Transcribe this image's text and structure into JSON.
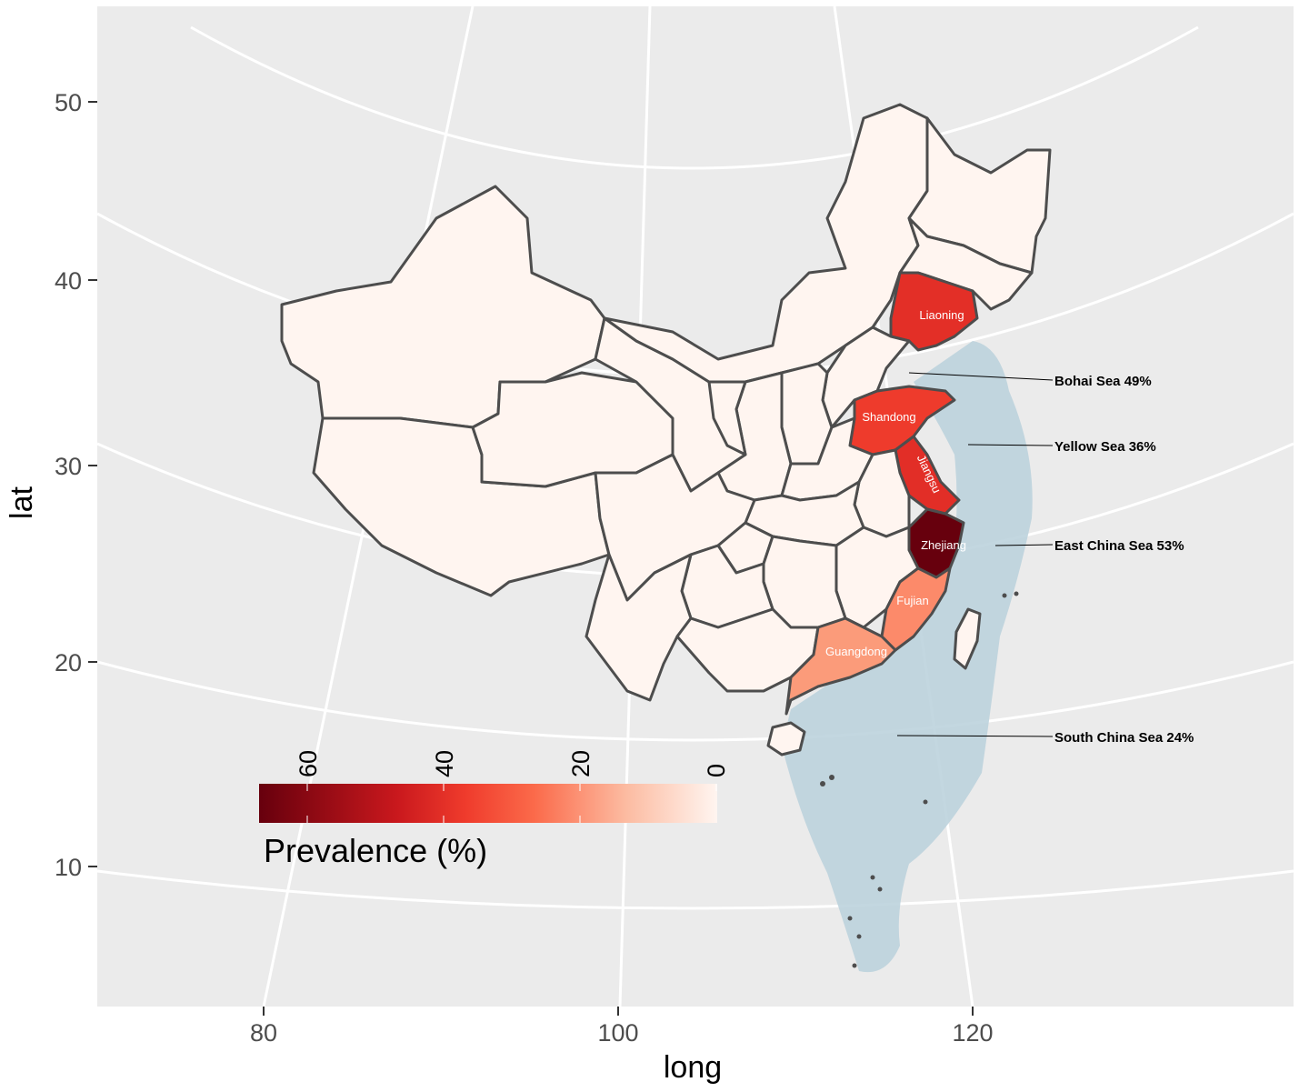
{
  "axes": {
    "x_title": "long",
    "y_title": "lat",
    "x_ticks": [
      "80",
      "100",
      "120"
    ],
    "y_ticks": [
      "50",
      "40",
      "30",
      "20",
      "10"
    ]
  },
  "provinces": {
    "liaoning": "Liaoning",
    "shandong": "Shandong",
    "jiangsu": "Jiangsu",
    "zhejiang": "Zhejiang",
    "fujian": "Fujian",
    "guangdong": "Guangdong"
  },
  "seas": {
    "bohai": "Bohai Sea 49%",
    "yellow": "Yellow Sea 36%",
    "east_china": "East China Sea 53%",
    "south_china": "South China Sea 24%"
  },
  "legend": {
    "title": "Prevalence (%)",
    "ticks": [
      "60",
      "40",
      "20",
      "0"
    ],
    "colors": {
      "high": "#67000d",
      "mid": "#ef3b2c",
      "low": "#fcbba1",
      "zero": "#fff5f0"
    }
  },
  "colors": {
    "panel": "#ebebeb",
    "grid": "#ffffff",
    "province_default": "#fff5f0",
    "province_border": "#4d4d4d",
    "sea_region": "#bcd3dd",
    "liaoning": "#e32f27",
    "shandong": "#ee3b2c",
    "jiangsu": "#e22e27",
    "zhejiang": "#67000d",
    "fujian": "#fc8a6a",
    "guangdong": "#fb9b7a"
  }
}
